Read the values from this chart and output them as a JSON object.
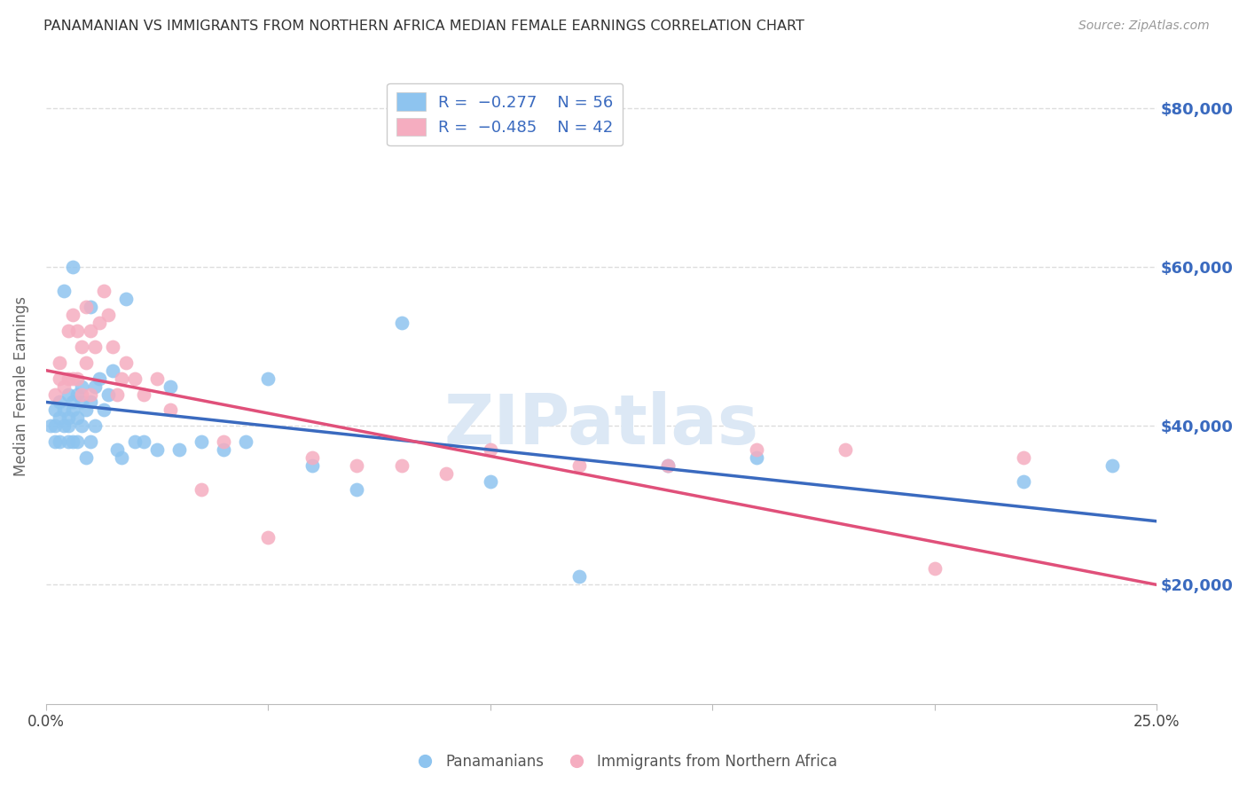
{
  "title": "PANAMANIAN VS IMMIGRANTS FROM NORTHERN AFRICA MEDIAN FEMALE EARNINGS CORRELATION CHART",
  "source": "Source: ZipAtlas.com",
  "ylabel": "Median Female Earnings",
  "y_ticks": [
    20000,
    40000,
    60000,
    80000
  ],
  "y_tick_labels": [
    "$20,000",
    "$40,000",
    "$60,000",
    "$80,000"
  ],
  "x_min": 0.0,
  "x_max": 0.25,
  "y_min": 5000,
  "y_max": 85000,
  "blue_color": "#8ec4ef",
  "pink_color": "#f5adc0",
  "blue_line_color": "#3a6abf",
  "pink_line_color": "#e0507a",
  "watermark_color": "#dce8f5",
  "watermark": "ZIPatlas",
  "blue_R": -0.277,
  "blue_N": 56,
  "pink_R": -0.485,
  "pink_N": 42,
  "blue_points_x": [
    0.001,
    0.002,
    0.002,
    0.002,
    0.003,
    0.003,
    0.003,
    0.004,
    0.004,
    0.004,
    0.005,
    0.005,
    0.005,
    0.005,
    0.006,
    0.006,
    0.006,
    0.006,
    0.007,
    0.007,
    0.007,
    0.008,
    0.008,
    0.008,
    0.009,
    0.009,
    0.01,
    0.01,
    0.01,
    0.011,
    0.011,
    0.012,
    0.013,
    0.014,
    0.015,
    0.016,
    0.017,
    0.018,
    0.02,
    0.022,
    0.025,
    0.028,
    0.03,
    0.035,
    0.04,
    0.045,
    0.05,
    0.06,
    0.07,
    0.08,
    0.1,
    0.12,
    0.14,
    0.16,
    0.22,
    0.24
  ],
  "blue_points_y": [
    40000,
    42000,
    38000,
    40000,
    41000,
    38000,
    43000,
    42000,
    57000,
    40000,
    44000,
    38000,
    40000,
    41000,
    42000,
    38000,
    43000,
    60000,
    41000,
    44000,
    38000,
    45000,
    40000,
    43000,
    42000,
    36000,
    43000,
    38000,
    55000,
    45000,
    40000,
    46000,
    42000,
    44000,
    47000,
    37000,
    36000,
    56000,
    38000,
    38000,
    37000,
    45000,
    37000,
    38000,
    37000,
    38000,
    46000,
    35000,
    32000,
    53000,
    33000,
    21000,
    35000,
    36000,
    33000,
    35000
  ],
  "pink_points_x": [
    0.002,
    0.003,
    0.003,
    0.004,
    0.005,
    0.005,
    0.006,
    0.006,
    0.007,
    0.007,
    0.008,
    0.008,
    0.009,
    0.009,
    0.01,
    0.01,
    0.011,
    0.012,
    0.013,
    0.014,
    0.015,
    0.016,
    0.017,
    0.018,
    0.02,
    0.022,
    0.025,
    0.028,
    0.035,
    0.04,
    0.05,
    0.06,
    0.07,
    0.08,
    0.09,
    0.1,
    0.12,
    0.14,
    0.16,
    0.18,
    0.2,
    0.22
  ],
  "pink_points_y": [
    44000,
    46000,
    48000,
    45000,
    52000,
    46000,
    54000,
    46000,
    52000,
    46000,
    50000,
    44000,
    55000,
    48000,
    52000,
    44000,
    50000,
    53000,
    57000,
    54000,
    50000,
    44000,
    46000,
    48000,
    46000,
    44000,
    46000,
    42000,
    32000,
    38000,
    26000,
    36000,
    35000,
    35000,
    34000,
    37000,
    35000,
    35000,
    37000,
    37000,
    22000,
    36000
  ],
  "background_color": "#ffffff",
  "grid_color": "#dddddd",
  "blue_line_y0": 43000,
  "blue_line_y1": 28000,
  "pink_line_y0": 47000,
  "pink_line_y1": 20000
}
